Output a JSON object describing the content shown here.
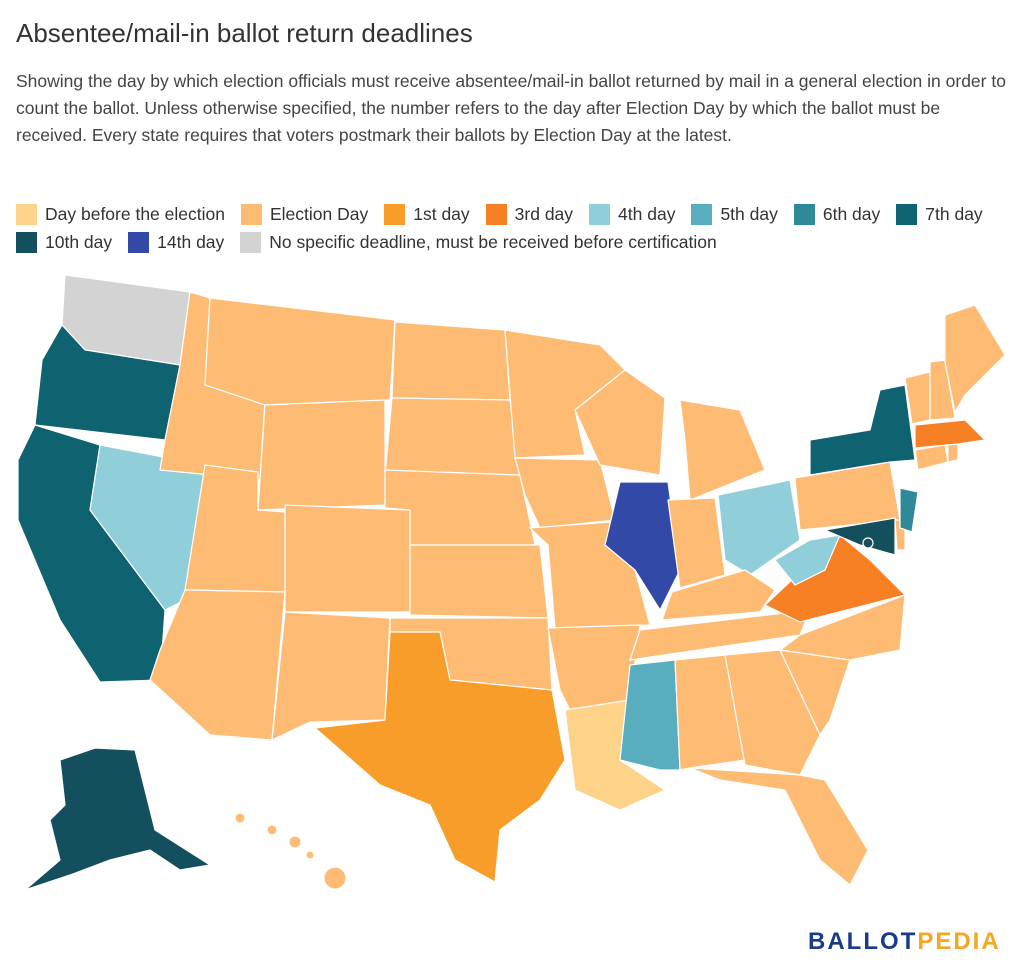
{
  "title": "Absentee/mail-in ballot return deadlines",
  "subtitle": "Showing the day by which election officials must receive absentee/mail-in ballot returned by mail in a general election in order to count the ballot. Unless otherwise specified, the number refers to the day after Election Day by which the ballot must be received. Every state requires that voters postmark their ballots by Election Day at the latest.",
  "legend": [
    {
      "key": "day_before",
      "label": "Day before the election",
      "color": "#fdd38a"
    },
    {
      "key": "election_day",
      "label": "Election Day",
      "color": "#fdbb74"
    },
    {
      "key": "day1",
      "label": "1st day",
      "color": "#f99d2a"
    },
    {
      "key": "day3",
      "label": "3rd day",
      "color": "#f77f24"
    },
    {
      "key": "day4",
      "label": "4th day",
      "color": "#90cfd9"
    },
    {
      "key": "day5",
      "label": "5th day",
      "color": "#58aebf"
    },
    {
      "key": "day6",
      "label": "6th day",
      "color": "#2e8a99"
    },
    {
      "key": "day7",
      "label": "7th day",
      "color": "#0f6270"
    },
    {
      "key": "day10",
      "label": "10th day",
      "color": "#134f5c"
    },
    {
      "key": "day14",
      "label": "14th day",
      "color": "#3249a8"
    },
    {
      "key": "none",
      "label": "No specific deadline, must be received before certification",
      "color": "#d3d3d3"
    }
  ],
  "states": {
    "WA": "none",
    "OR": "day7",
    "CA": "day7",
    "NV": "day4",
    "ID": "election_day",
    "MT": "election_day",
    "WY": "election_day",
    "UT": "election_day",
    "AZ": "election_day",
    "CO": "election_day",
    "NM": "election_day",
    "ND": "election_day",
    "SD": "election_day",
    "NE": "election_day",
    "KS": "election_day",
    "OK": "election_day",
    "TX": "day1",
    "MN": "election_day",
    "IA": "election_day",
    "MO": "election_day",
    "AR": "election_day",
    "LA": "day_before",
    "WI": "election_day",
    "IL": "day14",
    "MI": "election_day",
    "IN": "election_day",
    "OH": "day4",
    "KY": "election_day",
    "TN": "election_day",
    "MS": "day5",
    "AL": "election_day",
    "GA": "election_day",
    "FL": "election_day",
    "SC": "election_day",
    "NC": "election_day",
    "VA": "day3",
    "WV": "day4",
    "MD": "day10",
    "DE": "election_day",
    "DC": "day10",
    "PA": "election_day",
    "NJ": "day6",
    "NY": "day7",
    "CT": "election_day",
    "RI": "election_day",
    "MA": "day3",
    "VT": "election_day",
    "NH": "election_day",
    "ME": "election_day",
    "AK": "day10",
    "HI": "election_day"
  },
  "logo": {
    "part1": "BALLOT",
    "part2": "PEDIA"
  }
}
